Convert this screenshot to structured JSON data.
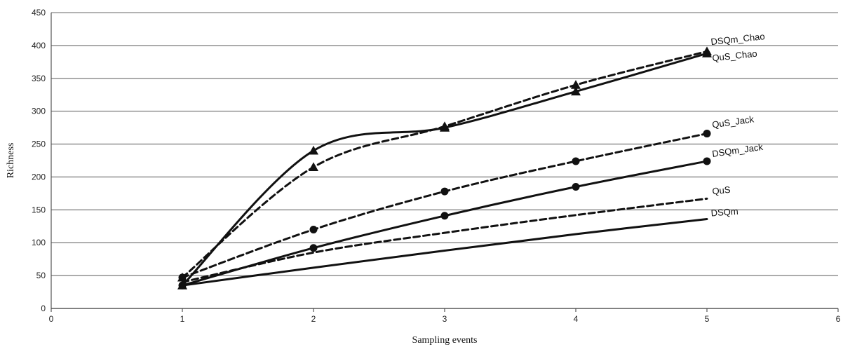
{
  "chart_data": {
    "type": "line",
    "xlabel": "Sampling events",
    "ylabel": "Richness",
    "xlim": [
      0,
      6
    ],
    "ylim": [
      0,
      450
    ],
    "xticks": [
      0,
      1,
      2,
      3,
      4,
      5,
      6
    ],
    "yticks": [
      0,
      50,
      100,
      150,
      200,
      250,
      300,
      350,
      400,
      450
    ],
    "grid": "horizontal",
    "legend": "inline labels at line ends",
    "series": [
      {
        "name": "DSQm_Chao",
        "x": [
          1,
          2,
          3,
          4,
          5
        ],
        "values": [
          35,
          240,
          275,
          330,
          388
        ],
        "line": "solid",
        "marker": "triangle",
        "smooth": true
      },
      {
        "name": "QuS_Chao",
        "x": [
          1,
          2,
          3,
          4,
          5
        ],
        "values": [
          47,
          215,
          277,
          340,
          391
        ],
        "line": "dashed",
        "marker": "triangle",
        "smooth": true
      },
      {
        "name": "QuS_Jack",
        "x": [
          1,
          2,
          3,
          4,
          5
        ],
        "values": [
          47,
          120,
          178,
          224,
          266
        ],
        "line": "dashed",
        "marker": "circle",
        "smooth": true
      },
      {
        "name": "DSQm_Jack",
        "x": [
          1,
          2,
          3,
          4,
          5
        ],
        "values": [
          35,
          92,
          141,
          185,
          224
        ],
        "line": "solid",
        "marker": "circle",
        "smooth": true
      },
      {
        "name": "QuS",
        "x": [
          1,
          2,
          3,
          4,
          5
        ],
        "values": [
          40,
          85,
          115,
          142,
          167
        ],
        "line": "dashed",
        "marker": "none",
        "smooth": true
      },
      {
        "name": "DSQm",
        "x": [
          1,
          2,
          3,
          4,
          5
        ],
        "values": [
          35,
          62,
          88,
          113,
          136
        ],
        "line": "solid",
        "marker": "none",
        "smooth": true
      }
    ]
  }
}
